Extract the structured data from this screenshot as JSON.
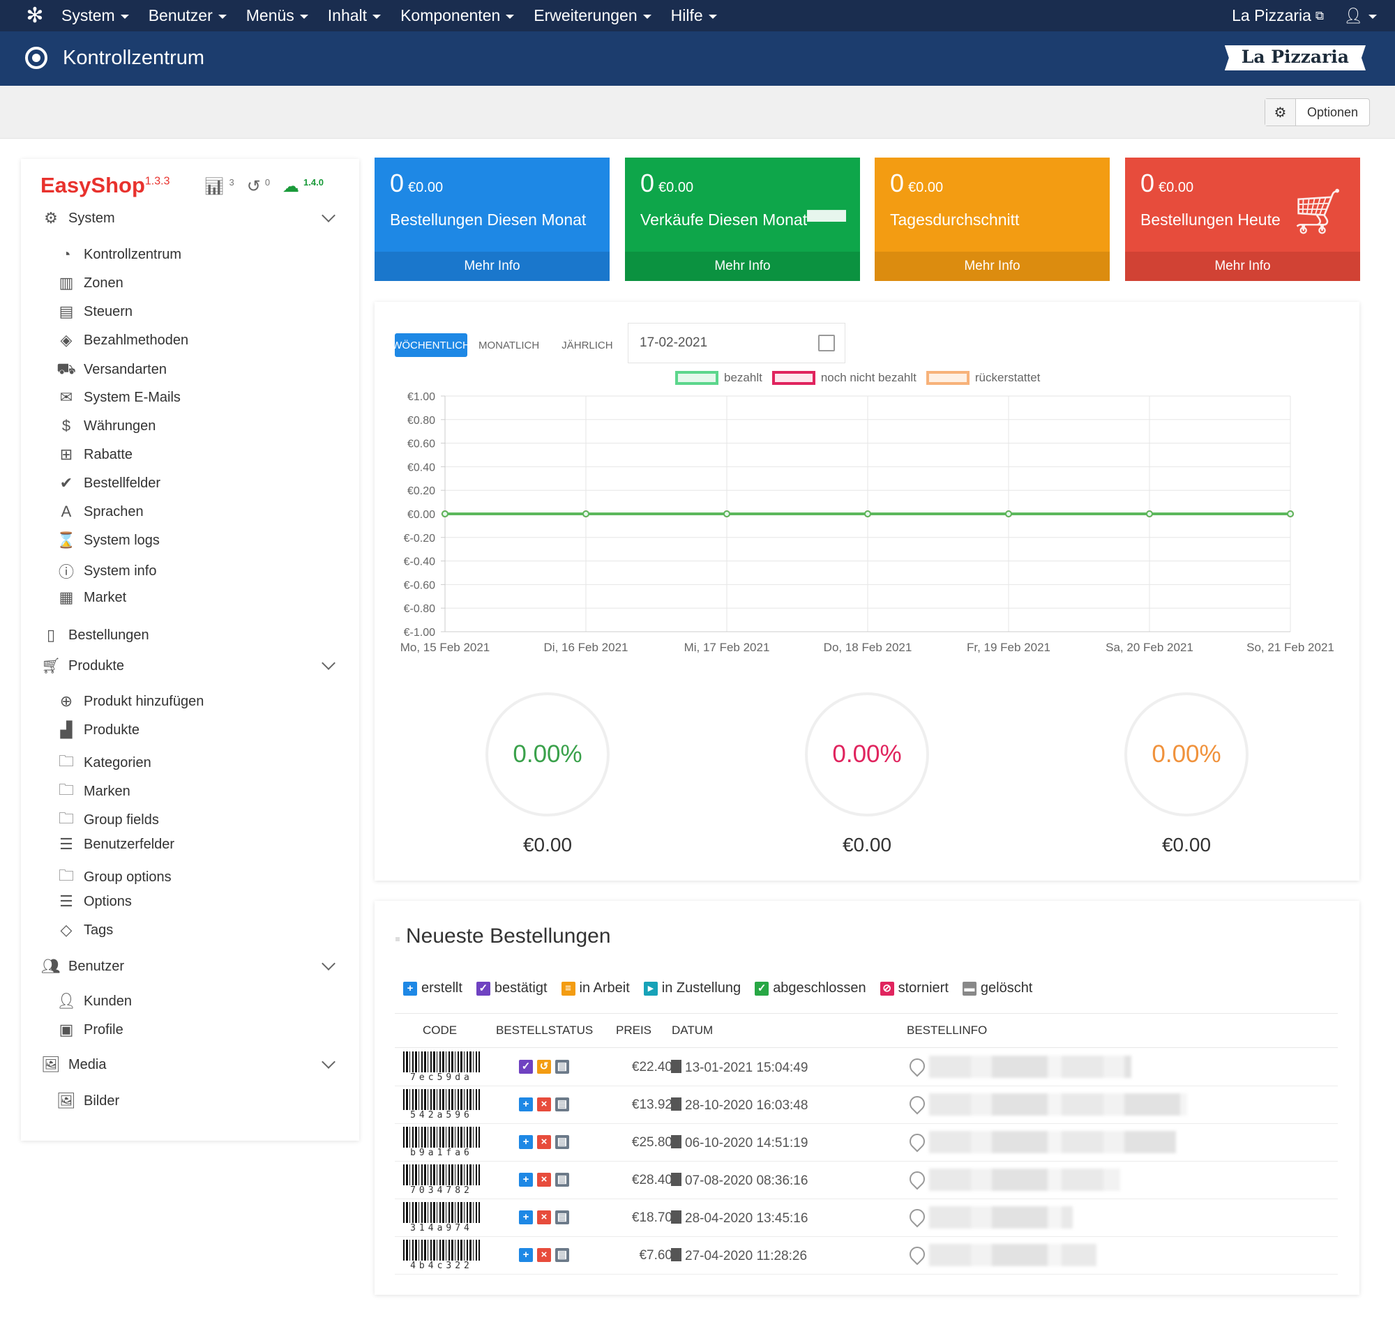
{
  "topnav": {
    "menu": [
      "System",
      "Benutzer",
      "Menüs",
      "Inhalt",
      "Komponenten",
      "Erweiterungen",
      "Hilfe"
    ],
    "site_link": "La Pizzaria"
  },
  "header": {
    "title": "Kontrollzentrum",
    "logo_text": "La Pizzaria"
  },
  "toolbar": {
    "options_label": "Optionen"
  },
  "sidebar": {
    "brand": "EasyShop",
    "version": "1.3.3",
    "stats": {
      "orders_count": "3",
      "logs_count": "0",
      "update_version": "1.4.0"
    },
    "system_group": "System",
    "system_items": [
      "Kontrollzentrum",
      "Zonen",
      "Steuern",
      "Bezahlmethoden",
      "Versandarten",
      "System E-Mails",
      "Währungen",
      "Rabatte",
      "Bestellfelder",
      "Sprachen",
      "System logs",
      "System info",
      "Market"
    ],
    "orders_item": "Bestellungen",
    "products_group": "Produkte",
    "product_items": [
      "Produkt hinzufügen",
      "Produkte",
      "Kategorien",
      "Marken",
      "Group fields",
      "Benutzerfelder",
      "Group options",
      "Options",
      "Tags"
    ],
    "users_group": "Benutzer",
    "user_items": [
      "Kunden",
      "Profile"
    ],
    "media_group": "Media",
    "media_items": [
      "Bilder"
    ]
  },
  "boxes": [
    {
      "count": "0",
      "amount": "€0.00",
      "label": "Bestellungen Diesen Monat",
      "link": "Mehr Info",
      "color": "#1e88e5",
      "foot": "#1a77cc"
    },
    {
      "count": "0",
      "amount": "€0.00",
      "label": "Verkäufe Diesen Monat",
      "link": "Mehr Info",
      "color": "#0ea64a",
      "foot": "#0b9240"
    },
    {
      "count": "0",
      "amount": "€0.00",
      "label": "Tagesdurchschnitt",
      "link": "Mehr Info",
      "color": "#f39c12",
      "foot": "#dc8c0f"
    },
    {
      "count": "0",
      "amount": "€0.00",
      "label": "Bestellungen Heute",
      "link": "Mehr Info",
      "color": "#e74c3c",
      "foot": "#d14234"
    }
  ],
  "chart_controls": {
    "tabs": [
      "WÖCHENTLICH",
      "MONATLICH",
      "JÄHRLICH"
    ],
    "active_tab": "WÖCHENTLICH",
    "date_value": "17-02-2021"
  },
  "chart_data": {
    "type": "line",
    "categories": [
      "Mo, 15 Feb 2021",
      "Di, 16 Feb 2021",
      "Mi, 17 Feb 2021",
      "Do, 18 Feb 2021",
      "Fr, 19 Feb 2021",
      "Sa, 20 Feb 2021",
      "So, 21 Feb 2021"
    ],
    "series": [
      {
        "name": "bezahlt",
        "values": [
          0,
          0,
          0,
          0,
          0,
          0,
          0
        ],
        "color": "#5cb85c"
      },
      {
        "name": "noch nicht bezahlt",
        "values": [
          0,
          0,
          0,
          0,
          0,
          0,
          0
        ],
        "color": "#e0245e"
      },
      {
        "name": "rückerstattet",
        "values": [
          0,
          0,
          0,
          0,
          0,
          0,
          0
        ],
        "color": "#f7a35c"
      }
    ],
    "yticks": [
      "€1.00",
      "€0.80",
      "€0.60",
      "€0.40",
      "€0.20",
      "€0.00",
      "€-0.20",
      "€-0.40",
      "€-0.60",
      "€-0.80",
      "€-1.00"
    ],
    "ylim": [
      -1,
      1
    ],
    "legend": "top",
    "grid": true
  },
  "donuts": [
    {
      "percent": "0.00%",
      "value": "€0.00",
      "color": "#3aa14b"
    },
    {
      "percent": "0.00%",
      "value": "€0.00",
      "color": "#e0245e"
    },
    {
      "percent": "0.00%",
      "value": "€0.00",
      "color": "#f0923c"
    }
  ],
  "orders": {
    "title": "Neueste Bestellungen",
    "status_legend": [
      {
        "label": "erstellt",
        "color": "#1e88e5",
        "icon": "plus-icon"
      },
      {
        "label": "bestätigt",
        "color": "#6f42c1",
        "icon": "check-icon"
      },
      {
        "label": "in Arbeit",
        "color": "#f39c12",
        "icon": "list-icon"
      },
      {
        "label": "in Zustellung",
        "color": "#17a2b8",
        "icon": "truck-icon"
      },
      {
        "label": "abgeschlossen",
        "color": "#28a745",
        "icon": "check-circle-icon"
      },
      {
        "label": "storniert",
        "color": "#e0245e",
        "icon": "ban-icon"
      },
      {
        "label": "gelöscht",
        "color": "#888888",
        "icon": "trash-icon"
      }
    ],
    "columns": [
      "CODE",
      "BESTELLSTATUS",
      "PREIS",
      "DATUM",
      "BESTELLINFO"
    ],
    "rows": [
      {
        "code": "7ec59da",
        "price": "€22.40",
        "date": "13-01-2021 15:04:49"
      },
      {
        "code": "542a596",
        "price": "€13.92",
        "date": "28-10-2020 16:03:48"
      },
      {
        "code": "b9a1fa6",
        "price": "€25.80",
        "date": "06-10-2020 14:51:19"
      },
      {
        "code": "7034782",
        "price": "€28.40",
        "date": "07-08-2020 08:36:16"
      },
      {
        "code": "314a974",
        "price": "€18.70",
        "date": "28-04-2020 13:45:16"
      },
      {
        "code": "4b4c322",
        "price": "€7.60",
        "date": "27-04-2020 11:28:26"
      }
    ]
  }
}
